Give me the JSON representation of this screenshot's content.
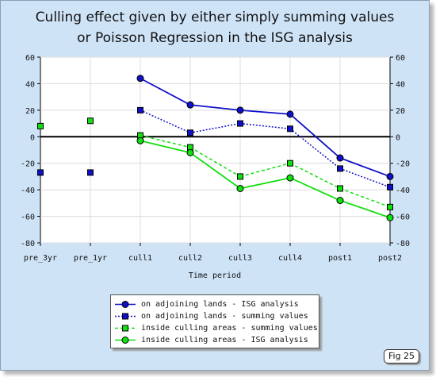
{
  "chart_data": {
    "type": "line",
    "title": [
      "Culling effect given by either simply summing values",
      "or Poisson Regression in the ISG analysis"
    ],
    "xlabel": "Time period",
    "ylabel": "",
    "categories": [
      "pre_3yr",
      "pre_1yr",
      "cull1",
      "cull2",
      "cull3",
      "cull4",
      "post1",
      "post2"
    ],
    "ylim": [
      -80,
      60
    ],
    "yticks": [
      -80,
      -60,
      -40,
      -20,
      0,
      20,
      40,
      60
    ],
    "grid": true,
    "legend_position": "bottom-center",
    "series": [
      {
        "name": "on adjoining lands - ISG analysis",
        "color": "#1010c8",
        "marker": "circle",
        "line": "solid",
        "values": [
          null,
          null,
          44,
          24,
          20,
          17,
          -16,
          -30
        ]
      },
      {
        "name": "on adjoining lands - summing values",
        "color": "#1010c8",
        "marker": "square",
        "line": "dotted",
        "values": [
          -27,
          -27,
          20,
          3,
          10,
          6,
          -24,
          -38
        ]
      },
      {
        "name": "inside culling areas - summing values",
        "color": "#10e010",
        "marker": "square",
        "line": "dashed",
        "values": [
          8,
          12,
          1,
          -8,
          -30,
          -20,
          -39,
          -53
        ]
      },
      {
        "name": "inside culling areas - ISG analysis",
        "color": "#10e010",
        "marker": "circle",
        "line": "solid",
        "values": [
          null,
          null,
          -3,
          -12,
          -39,
          -31,
          -48,
          -61
        ]
      }
    ]
  },
  "figure_tag": "Fig 25"
}
